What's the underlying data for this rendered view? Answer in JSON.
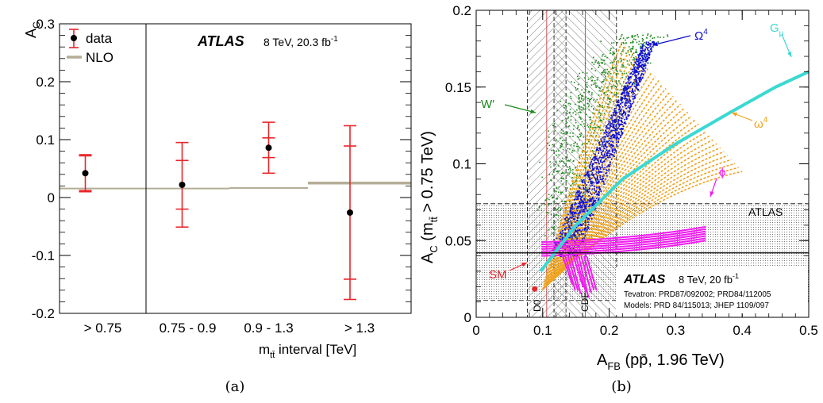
{
  "captions": {
    "a": "(a)",
    "b": "(b)"
  },
  "chart_data": [
    {
      "type": "scatter",
      "panel": "a",
      "ylabel_main": "A",
      "ylabel_sub": "C",
      "xlabel_main": "m",
      "xlabel_sub": "tt̄",
      "xlabel_rest": " interval [TeV]",
      "ylim": [
        -0.2,
        0.3
      ],
      "yticks": [
        "0.3",
        "0.2",
        "0.1",
        "0",
        "-0.1",
        "-0.2"
      ],
      "categories": [
        "> 0.75",
        "0.75 - 0.9",
        "0.9 - 1.3",
        "> 1.3"
      ],
      "legend": {
        "data": "data",
        "nlo": "NLO"
      },
      "experiment": "ATLAS",
      "energy_label": "8 TeV, 20.3 fb",
      "energy_sup": "-1",
      "series": [
        {
          "name": "data",
          "values": [
            0.042,
            0.022,
            0.086,
            -0.026
          ],
          "err_stat": [
            0.03,
            0.042,
            0.017,
            0.115
          ],
          "err_total": [
            0.032,
            0.073,
            0.044,
            0.15
          ]
        },
        {
          "name": "NLO",
          "values": [
            0.0155,
            0.0155,
            0.0165,
            0.025
          ]
        }
      ],
      "colors": {
        "data": "#e8252a",
        "point": "#000000",
        "nlo": "#b4ad96"
      }
    },
    {
      "type": "scatter",
      "panel": "b",
      "xlim": [
        0,
        0.5
      ],
      "ylim": [
        0,
        0.2
      ],
      "xticks": [
        "0",
        "0.1",
        "0.2",
        "0.3",
        "0.4",
        "0.5"
      ],
      "yticks": [
        "0",
        "0.05",
        "0.1",
        "0.15",
        "0.2"
      ],
      "xlabel_main": "A",
      "xlabel_sub": "FB",
      "xlabel_rest": " (pp̄, 1.96 TeV)",
      "ylabel_main": "A",
      "ylabel_sub": "C",
      "ylabel_rest_a": " (m",
      "ylabel_sub2": "tt̄",
      "ylabel_rest_b": " > 0.75 TeV)",
      "atlas_band": {
        "label": "ATLAS",
        "value": 0.042,
        "low": 0.011,
        "high": 0.074
      },
      "d0_band": {
        "label": "D0",
        "center": 0.106,
        "low": 0.077,
        "high": 0.135
      },
      "cdf_band": {
        "label": "CDF",
        "center": 0.164,
        "low": 0.117,
        "high": 0.211
      },
      "sm_point": {
        "label": "SM",
        "x": 0.088,
        "y": 0.0185
      },
      "models": [
        {
          "name": "W′",
          "label_main": "W′",
          "label_sup": "",
          "color": "#1a8a1a"
        },
        {
          "name": "Ω4",
          "label_main": "Ω",
          "label_sup": "4",
          "color": "#1010d0"
        },
        {
          "name": "ω4",
          "label_main": "ω",
          "label_sup": "4",
          "color": "#f0a21c"
        },
        {
          "name": "φ",
          "label_main": "ϕ",
          "label_sup": "",
          "color": "#f01cf0"
        },
        {
          "name": "Gμ",
          "label_main": "G",
          "label_sub": "μ",
          "color": "#3cd8d2"
        }
      ],
      "experiment": "ATLAS",
      "energy_label": "8 TeV, 20 fb",
      "energy_sup": "-1",
      "refs": [
        "Tevatron: PRD87/092002; PRD84/112005",
        "Models: PRD 84/115013; JHEP 1109/097"
      ]
    }
  ]
}
